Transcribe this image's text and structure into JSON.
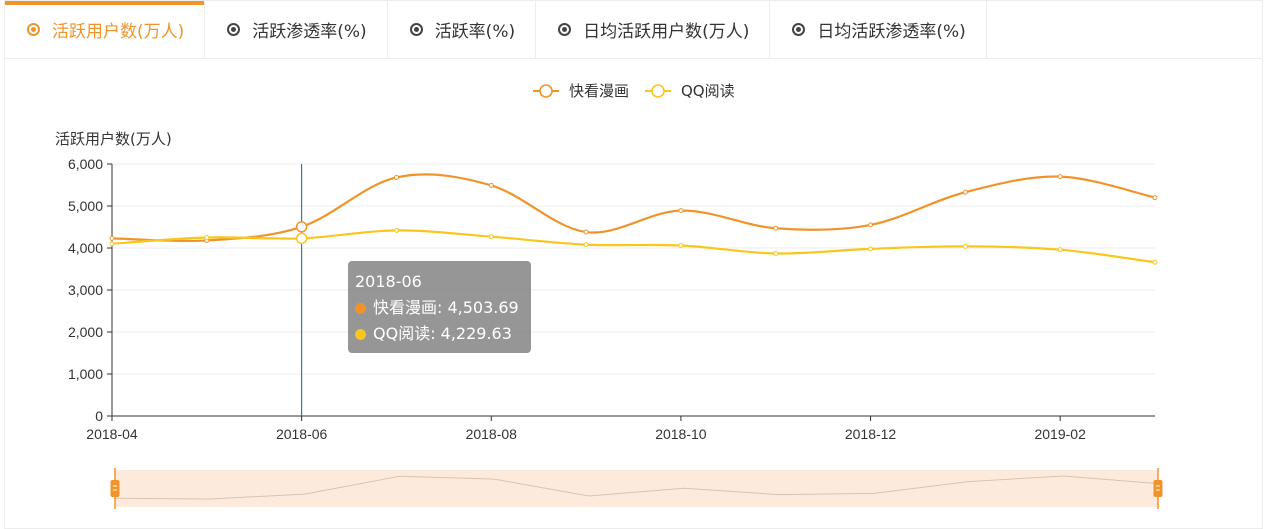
{
  "tabs": [
    {
      "label": "活跃用户数(万人)",
      "active": true
    },
    {
      "label": "活跃渗透率(%)",
      "active": false
    },
    {
      "label": "活跃率(%)",
      "active": false
    },
    {
      "label": "日均活跃用户数(万人)",
      "active": false
    },
    {
      "label": "日均活跃渗透率(%)",
      "active": false
    }
  ],
  "colors": {
    "accent": "#f0942a",
    "series1": "#f0942a",
    "series2": "#f8c61c",
    "crosshair": "#1f5f8b",
    "zoom_fill": "#fcebdc"
  },
  "chart_data": {
    "type": "line",
    "ylabel": "活跃用户数(万人)",
    "xlabel": "",
    "ylim": [
      0,
      6000
    ],
    "yticks": [
      "0",
      "1,000",
      "2,000",
      "3,000",
      "4,000",
      "5,000",
      "6,000"
    ],
    "x": [
      "2018-04",
      "2018-05",
      "2018-06",
      "2018-07",
      "2018-08",
      "2018-09",
      "2018-10",
      "2018-11",
      "2018-12",
      "2019-01",
      "2019-02",
      "2019-03"
    ],
    "xtick_labels": [
      "2018-04",
      "2018-06",
      "2018-08",
      "2018-10",
      "2018-12",
      "2019-02"
    ],
    "series": [
      {
        "name": "快看漫画",
        "color": "#f0942a",
        "values": [
          4230,
          4180,
          4503.69,
          5680,
          5490,
          4380,
          4890,
          4470,
          4550,
          5330,
          5700,
          5200
        ]
      },
      {
        "name": "QQ阅读",
        "color": "#f8c61c",
        "values": [
          4100,
          4250,
          4229.63,
          4420,
          4270,
          4080,
          4060,
          3870,
          3980,
          4040,
          3960,
          3660
        ]
      }
    ],
    "legend": "top-center",
    "grid": true,
    "tooltip": {
      "title": "2018-06",
      "rows": [
        {
          "label": "快看漫画: 4,503.69",
          "color": "#f0942a"
        },
        {
          "label": "QQ阅读: 4,229.63",
          "color": "#f8c61c"
        }
      ]
    },
    "highlight_index": 2,
    "datazoom": {
      "start": 0,
      "end": 100
    }
  }
}
